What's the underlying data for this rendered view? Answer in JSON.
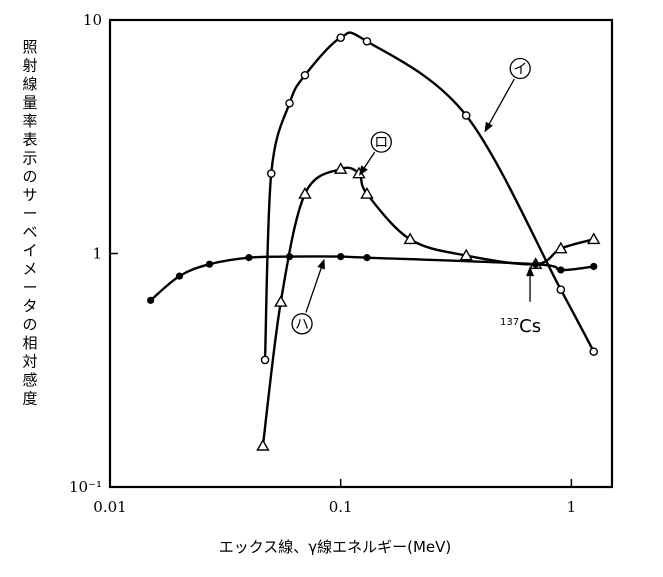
{
  "chart_data": {
    "type": "line",
    "xscale": "log",
    "yscale": "log",
    "xlim": [
      0.01,
      1.5
    ],
    "ylim": [
      0.1,
      10
    ],
    "xticks": [
      {
        "value": 0.01,
        "label": "0.01"
      },
      {
        "value": 0.1,
        "label": "0.1"
      },
      {
        "value": 1,
        "label": "1"
      }
    ],
    "yticks": [
      {
        "value": 10,
        "label": "10"
      },
      {
        "value": 1,
        "label": "1"
      },
      {
        "value": 0.1,
        "label": "10⁻¹"
      }
    ],
    "xlabel": "エックス線、γ線エネルギー(MeV)",
    "ylabel": "照射線量率表示のサーベイメータの相対感度",
    "series": [
      {
        "name": "イ",
        "marker": "circle",
        "points": [
          [
            0.047,
            0.35
          ],
          [
            0.05,
            2.2
          ],
          [
            0.06,
            4.4
          ],
          [
            0.07,
            5.8
          ],
          [
            0.1,
            8.4
          ],
          [
            0.13,
            8.1
          ],
          [
            0.35,
            3.9
          ],
          [
            0.9,
            0.7
          ],
          [
            1.25,
            0.38
          ]
        ]
      },
      {
        "name": "ロ",
        "marker": "triangle",
        "points": [
          [
            0.046,
            0.15
          ],
          [
            0.055,
            0.62
          ],
          [
            0.07,
            1.8
          ],
          [
            0.1,
            2.3
          ],
          [
            0.12,
            2.2
          ],
          [
            0.13,
            1.8
          ],
          [
            0.2,
            1.15
          ],
          [
            0.35,
            0.98
          ],
          [
            0.7,
            0.9
          ],
          [
            0.9,
            1.05
          ],
          [
            1.25,
            1.15
          ]
        ]
      },
      {
        "name": "ハ",
        "marker": "dot",
        "points": [
          [
            0.015,
            0.63
          ],
          [
            0.02,
            0.8
          ],
          [
            0.027,
            0.9
          ],
          [
            0.04,
            0.96
          ],
          [
            0.06,
            0.97
          ],
          [
            0.1,
            0.97
          ],
          [
            0.13,
            0.96
          ],
          [
            0.7,
            0.9
          ],
          [
            0.9,
            0.85
          ],
          [
            1.25,
            0.88
          ]
        ]
      }
    ],
    "annotations": [
      {
        "label": "イ",
        "x": 0.6,
        "y": 6.2,
        "target": [
          0.42,
          3.3
        ]
      },
      {
        "label": "ロ",
        "x": 0.15,
        "y": 3.0,
        "target": [
          0.12,
          2.15
        ]
      },
      {
        "label": "ハ",
        "x": 0.068,
        "y": 0.5,
        "target": [
          0.085,
          0.95
        ]
      },
      {
        "label": "137Cs",
        "label_sup": "137",
        "label_main": "Cs",
        "x": 0.75,
        "y": 0.5,
        "target": [
          0.662,
          0.9
        ]
      }
    ]
  }
}
